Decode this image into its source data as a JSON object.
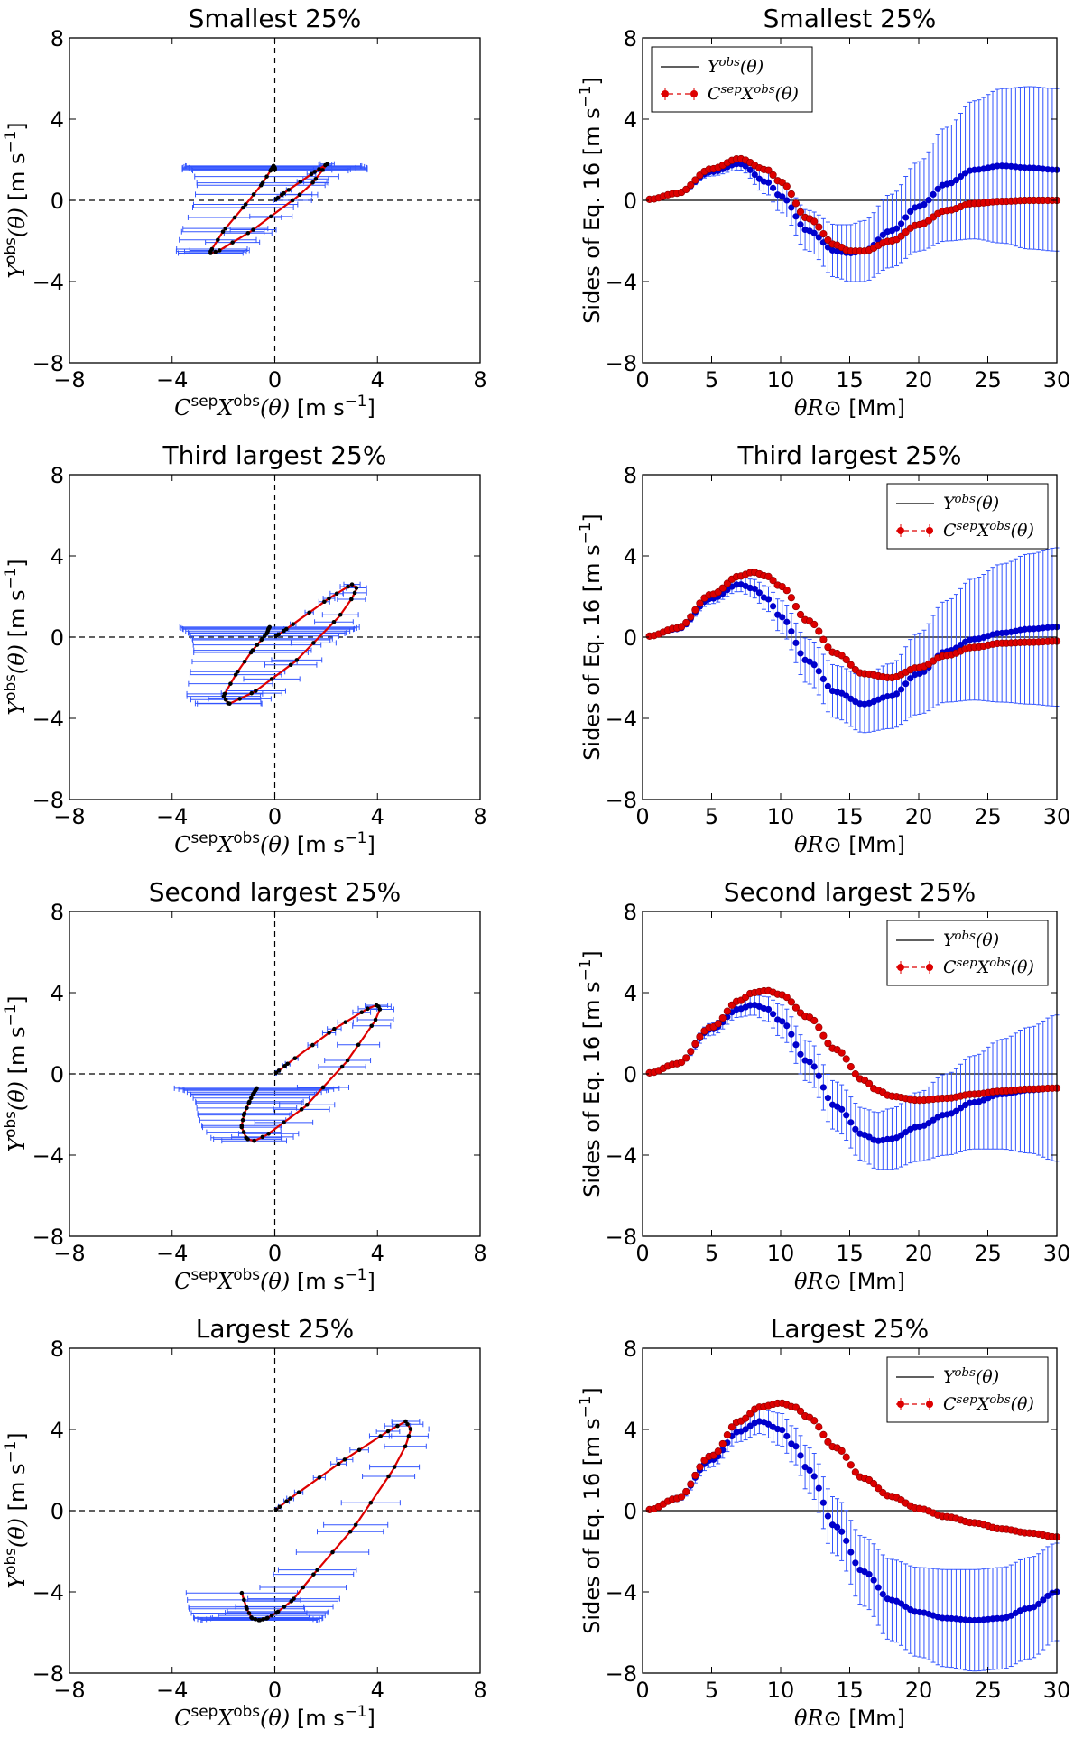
{
  "figure": {
    "rows": [
      {
        "title_left": "Smallest 25%",
        "title_right": "Smallest 25%",
        "legend_loc": "upper left"
      },
      {
        "title_left": "Third largest 25%",
        "title_right": "Third largest 25%",
        "legend_loc": "upper right"
      },
      {
        "title_left": "Second largest 25%",
        "title_right": "Second largest 25%",
        "legend_loc": "upper right"
      },
      {
        "title_left": "Largest 25%",
        "title_right": "Largest 25%",
        "legend_loc": "upper right"
      }
    ],
    "left_xlabel": "C^sep X^obs(θ) [m s⁻¹]",
    "left_ylabel": "Y^obs(θ) [m s⁻¹]",
    "right_xlabel": "θR⊙ [Mm]",
    "right_ylabel": "Sides of Eq. 16 [m s⁻¹]",
    "legend": {
      "y_label": "Y^obs(θ)",
      "x_label": "C^sep X^obs(θ)"
    },
    "left_xticks": [
      "−8",
      "−4",
      "0",
      "4",
      "8"
    ],
    "left_yticks": [
      "−8",
      "−4",
      "0",
      "4",
      "8"
    ],
    "right_xticks": [
      "0",
      "5",
      "10",
      "15",
      "20",
      "25",
      "30"
    ],
    "right_yticks": [
      "−8",
      "−4",
      "0",
      "4",
      "8"
    ],
    "colors": {
      "y_series": "#0000cc",
      "x_series": "#dd0000",
      "errorbar_y": "#3355ff",
      "errorbar_x": "#ff5555",
      "axis": "#000000"
    }
  },
  "chart_data": [
    {
      "type": "line",
      "panel": "right",
      "title": "Smallest 25%",
      "xlabel": "θR⊙ [Mm]",
      "ylabel": "Sides of Eq. 16 [m s⁻¹]",
      "xlim": [
        0,
        30
      ],
      "ylim": [
        -8,
        8
      ],
      "x": [
        0.5,
        2.5,
        5,
        7,
        9,
        10,
        12,
        14,
        15,
        16,
        18,
        20,
        22,
        24,
        26,
        28,
        30
      ],
      "series": [
        {
          "name": "Y^obs(θ)",
          "values": [
            0.05,
            0.35,
            1.4,
            1.8,
            0.9,
            0.2,
            -1.5,
            -2.5,
            -2.6,
            -2.5,
            -1.5,
            -0.3,
            0.8,
            1.5,
            1.7,
            1.6,
            1.5
          ],
          "err": [
            0.02,
            0.08,
            0.2,
            0.3,
            0.6,
            0.8,
            1.0,
            1.3,
            1.4,
            1.5,
            1.8,
            2.2,
            2.8,
            3.4,
            3.8,
            4.0,
            4.0
          ]
        },
        {
          "name": "C^sep X^obs(θ)",
          "values": [
            0.05,
            0.35,
            1.55,
            2.05,
            1.5,
            0.9,
            -0.9,
            -2.2,
            -2.5,
            -2.5,
            -2.0,
            -1.2,
            -0.5,
            -0.15,
            -0.05,
            0.0,
            0.0
          ],
          "err": [
            0.01,
            0.02,
            0.03,
            0.04,
            0.05,
            0.05,
            0.06,
            0.06,
            0.06,
            0.06,
            0.05,
            0.05,
            0.04,
            0.04,
            0.03,
            0.03,
            0.03
          ]
        }
      ]
    },
    {
      "type": "line",
      "panel": "right",
      "title": "Third largest 25%",
      "xlabel": "θR⊙ [Mm]",
      "ylabel": "Sides of Eq. 16 [m s⁻¹]",
      "xlim": [
        0,
        30
      ],
      "ylim": [
        -8,
        8
      ],
      "x": [
        0.5,
        2.5,
        5,
        7,
        8,
        9,
        10,
        12,
        14,
        16,
        18,
        20,
        22,
        24,
        26,
        28,
        30
      ],
      "series": [
        {
          "name": "Y^obs(θ)",
          "values": [
            0.05,
            0.4,
            1.9,
            2.6,
            2.4,
            1.9,
            1.0,
            -1.2,
            -2.7,
            -3.3,
            -2.9,
            -1.8,
            -0.7,
            -0.1,
            0.2,
            0.4,
            0.5
          ],
          "err": [
            0.02,
            0.1,
            0.25,
            0.35,
            0.45,
            0.6,
            0.8,
            1.1,
            1.3,
            1.4,
            1.6,
            2.0,
            2.5,
            3.0,
            3.4,
            3.7,
            3.9
          ]
        },
        {
          "name": "C^sep X^obs(θ)",
          "values": [
            0.05,
            0.45,
            2.1,
            3.0,
            3.2,
            3.0,
            2.5,
            0.8,
            -0.8,
            -1.8,
            -2.0,
            -1.5,
            -0.9,
            -0.5,
            -0.3,
            -0.25,
            -0.2
          ],
          "err": [
            0.01,
            0.02,
            0.03,
            0.04,
            0.05,
            0.05,
            0.05,
            0.06,
            0.06,
            0.06,
            0.06,
            0.05,
            0.05,
            0.04,
            0.04,
            0.04,
            0.04
          ]
        }
      ]
    },
    {
      "type": "line",
      "panel": "right",
      "title": "Second largest 25%",
      "xlabel": "θR⊙ [Mm]",
      "ylabel": "Sides of Eq. 16 [m s⁻¹]",
      "xlim": [
        0,
        30
      ],
      "ylim": [
        -8,
        8
      ],
      "x": [
        0.5,
        2.5,
        5,
        7,
        8,
        9,
        10,
        12,
        14,
        16,
        17,
        18,
        20,
        22,
        24,
        26,
        28,
        30
      ],
      "series": [
        {
          "name": "Y^obs(θ)",
          "values": [
            0.05,
            0.5,
            2.2,
            3.2,
            3.4,
            3.2,
            2.6,
            0.6,
            -1.6,
            -3.0,
            -3.3,
            -3.2,
            -2.6,
            -2.0,
            -1.4,
            -1.0,
            -0.8,
            -0.7
          ],
          "err": [
            0.02,
            0.1,
            0.3,
            0.4,
            0.5,
            0.6,
            0.8,
            1.0,
            1.2,
            1.3,
            1.4,
            1.5,
            1.7,
            2.0,
            2.3,
            2.7,
            3.1,
            3.6
          ]
        },
        {
          "name": "C^sep X^obs(θ)",
          "values": [
            0.05,
            0.5,
            2.3,
            3.6,
            4.0,
            4.1,
            3.9,
            2.8,
            1.2,
            -0.3,
            -0.8,
            -1.1,
            -1.3,
            -1.2,
            -1.0,
            -0.85,
            -0.75,
            -0.7
          ],
          "err": [
            0.01,
            0.02,
            0.03,
            0.04,
            0.05,
            0.05,
            0.05,
            0.06,
            0.06,
            0.06,
            0.06,
            0.06,
            0.05,
            0.05,
            0.05,
            0.04,
            0.04,
            0.04
          ]
        }
      ]
    },
    {
      "type": "line",
      "panel": "right",
      "title": "Largest 25%",
      "xlabel": "θR⊙ [Mm]",
      "ylabel": "Sides of Eq. 16 [m s⁻¹]",
      "xlim": [
        0,
        30
      ],
      "ylim": [
        -8,
        8
      ],
      "x": [
        0.5,
        2.5,
        5,
        7,
        8.5,
        10,
        11,
        12,
        14,
        16,
        18,
        20,
        22,
        24,
        26,
        28,
        30
      ],
      "series": [
        {
          "name": "Y^obs(θ)",
          "values": [
            0.05,
            0.6,
            2.5,
            3.9,
            4.4,
            4.0,
            3.2,
            2.0,
            -0.8,
            -3.0,
            -4.4,
            -5.0,
            -5.3,
            -5.4,
            -5.3,
            -4.8,
            -4.0
          ],
          "err": [
            0.02,
            0.15,
            0.35,
            0.5,
            0.6,
            0.8,
            0.9,
            1.1,
            1.4,
            1.7,
            2.0,
            2.2,
            2.4,
            2.5,
            2.5,
            2.5,
            2.4
          ]
        },
        {
          "name": "C^sep X^obs(θ)",
          "values": [
            0.05,
            0.6,
            2.7,
            4.4,
            5.1,
            5.3,
            5.1,
            4.6,
            3.1,
            1.6,
            0.7,
            0.1,
            -0.3,
            -0.6,
            -0.9,
            -1.1,
            -1.3
          ],
          "err": [
            0.01,
            0.02,
            0.03,
            0.04,
            0.05,
            0.05,
            0.05,
            0.06,
            0.06,
            0.06,
            0.06,
            0.06,
            0.05,
            0.05,
            0.05,
            0.05,
            0.05
          ]
        }
      ]
    }
  ]
}
